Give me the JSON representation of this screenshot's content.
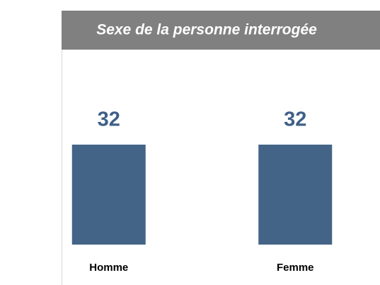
{
  "chart_data": {
    "type": "bar",
    "title": "Sexe de la personne interrogée",
    "categories": [
      "Homme",
      "Femme"
    ],
    "values": [
      32,
      32
    ],
    "color": "#436487"
  }
}
